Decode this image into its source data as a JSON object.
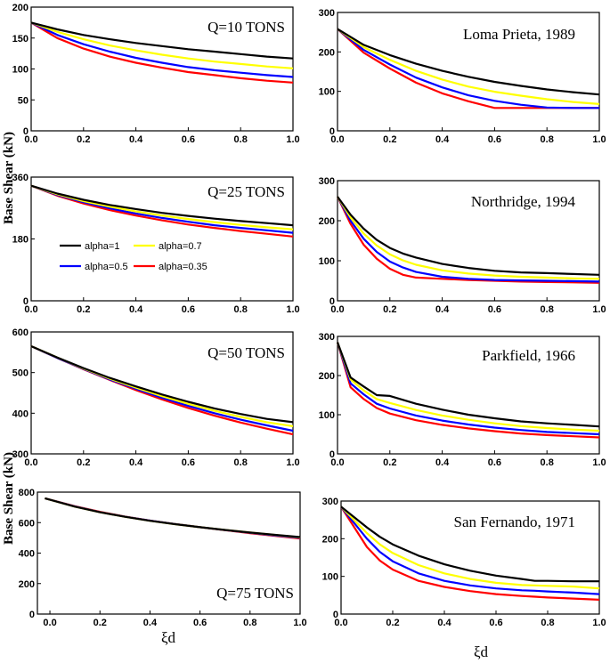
{
  "figure": {
    "ylabel_top": "Base Shear (kN)",
    "ylabel_bottom": "Base Shear (kN)",
    "xlabel_left": "ξd",
    "xlabel_right": "ξd"
  },
  "chart_data": [
    {
      "type": "line",
      "annotation": "Q=10 TONS",
      "xlim": [
        0,
        1
      ],
      "ylim": [
        0,
        200
      ],
      "xticks": [
        "0.0",
        "0.2",
        "0.4",
        "0.6",
        "0.8",
        "1.0"
      ],
      "yticks": [
        "0",
        "50",
        "100",
        "150",
        "200"
      ],
      "x": [
        0,
        0.1,
        0.2,
        0.3,
        0.4,
        0.5,
        0.6,
        0.7,
        0.8,
        0.9,
        1.0
      ],
      "series": [
        {
          "name": "alpha=1",
          "color": "#000000",
          "values": [
            175,
            164,
            155,
            148,
            142,
            137,
            132,
            128,
            124,
            120,
            117
          ]
        },
        {
          "name": "alpha=0.7",
          "color": "#ffff00",
          "values": [
            175,
            160,
            148,
            138,
            130,
            123,
            117,
            112,
            108,
            104,
            101
          ]
        },
        {
          "name": "alpha=0.5",
          "color": "#0000ff",
          "values": [
            175,
            155,
            140,
            128,
            118,
            110,
            103,
            98,
            94,
            90,
            87
          ]
        },
        {
          "name": "alpha=0.35",
          "color": "#ff0000",
          "values": [
            175,
            150,
            133,
            120,
            110,
            102,
            95,
            90,
            85,
            81,
            78
          ]
        }
      ]
    },
    {
      "type": "line",
      "annotation": "Loma Prieta, 1989",
      "xlim": [
        0,
        1
      ],
      "ylim": [
        0,
        300
      ],
      "xticks": [
        "0.0",
        "0.2",
        "0.4",
        "0.6",
        "0.8",
        "1.0"
      ],
      "yticks": [
        "0",
        "100",
        "200",
        "300"
      ],
      "x": [
        0,
        0.1,
        0.2,
        0.3,
        0.4,
        0.5,
        0.6,
        0.7,
        0.8,
        0.9,
        1.0
      ],
      "series": [
        {
          "name": "alpha=1",
          "color": "#000000",
          "values": [
            258,
            218,
            192,
            170,
            152,
            137,
            124,
            114,
            105,
            98,
            92
          ]
        },
        {
          "name": "alpha=0.7",
          "color": "#ffff00",
          "values": [
            258,
            212,
            180,
            152,
            130,
            112,
            99,
            89,
            80,
            73,
            68
          ]
        },
        {
          "name": "alpha=0.5",
          "color": "#0000ff",
          "values": [
            258,
            205,
            168,
            135,
            110,
            90,
            76,
            66,
            59,
            58,
            58
          ]
        },
        {
          "name": "alpha=0.35",
          "color": "#ff0000",
          "values": [
            258,
            198,
            158,
            122,
            95,
            75,
            58,
            58,
            58,
            58,
            58
          ]
        }
      ]
    },
    {
      "type": "line",
      "annotation": "Q=25 TONS",
      "xlim": [
        0,
        1
      ],
      "ylim": [
        0,
        360
      ],
      "xticks": [
        "0.0",
        "0.2",
        "0.4",
        "0.6",
        "0.8",
        "1.0"
      ],
      "yticks": [
        "0",
        "180",
        "360"
      ],
      "x": [
        0,
        0.1,
        0.2,
        0.3,
        0.4,
        0.5,
        0.6,
        0.7,
        0.8,
        0.9,
        1.0
      ],
      "legend": [
        "alpha=1",
        "alpha=0.7",
        "alpha=0.5",
        "alpha=0.35"
      ],
      "series": [
        {
          "name": "alpha=1",
          "color": "#000000",
          "values": [
            335,
            312,
            294,
            279,
            267,
            256,
            247,
            239,
            232,
            226,
            220
          ]
        },
        {
          "name": "alpha=0.7",
          "color": "#ffff00",
          "values": [
            335,
            310,
            290,
            274,
            260,
            248,
            238,
            229,
            221,
            214,
            208
          ]
        },
        {
          "name": "alpha=0.5",
          "color": "#0000ff",
          "values": [
            335,
            308,
            287,
            269,
            254,
            241,
            230,
            220,
            212,
            205,
            198
          ]
        },
        {
          "name": "alpha=0.35",
          "color": "#ff0000",
          "values": [
            335,
            306,
            283,
            264,
            248,
            234,
            222,
            212,
            203,
            195,
            187
          ]
        }
      ]
    },
    {
      "type": "line",
      "annotation": "Northridge, 1994",
      "xlim": [
        0,
        1
      ],
      "ylim": [
        0,
        300
      ],
      "xticks": [
        "0.0",
        "0.2",
        "0.4",
        "0.6",
        "0.8",
        "1.0"
      ],
      "yticks": [
        "0",
        "100",
        "200",
        "300"
      ],
      "x": [
        0,
        0.05,
        0.1,
        0.15,
        0.2,
        0.25,
        0.3,
        0.4,
        0.5,
        0.6,
        0.7,
        0.8,
        0.9,
        1.0
      ],
      "series": [
        {
          "name": "alpha=1",
          "color": "#000000",
          "values": [
            260,
            215,
            180,
            152,
            132,
            118,
            108,
            92,
            82,
            75,
            71,
            69,
            67,
            65
          ]
        },
        {
          "name": "alpha=0.7",
          "color": "#ffff00",
          "values": [
            260,
            208,
            168,
            138,
            116,
            101,
            90,
            76,
            68,
            63,
            60,
            58,
            56,
            55
          ]
        },
        {
          "name": "alpha=0.5",
          "color": "#0000ff",
          "values": [
            260,
            200,
            155,
            122,
            98,
            83,
            72,
            60,
            55,
            52,
            51,
            50,
            49,
            48
          ]
        },
        {
          "name": "alpha=0.35",
          "color": "#ff0000",
          "values": [
            260,
            192,
            140,
            105,
            80,
            65,
            58,
            55,
            52,
            50,
            48,
            47,
            46,
            45
          ]
        }
      ]
    },
    {
      "type": "line",
      "annotation": "Q=50 TONS",
      "xlim": [
        0,
        1
      ],
      "ylim": [
        300,
        600
      ],
      "xticks": [
        "0.0",
        "0.2",
        "0.4",
        "0.6",
        "0.8",
        "1.0"
      ],
      "yticks": [
        "300",
        "400",
        "500",
        "600"
      ],
      "x": [
        0,
        0.1,
        0.2,
        0.3,
        0.4,
        0.5,
        0.6,
        0.7,
        0.8,
        0.9,
        1.0
      ],
      "series": [
        {
          "name": "alpha=1",
          "color": "#000000",
          "values": [
            565,
            537,
            511,
            487,
            466,
            446,
            428,
            412,
            398,
            386,
            378
          ]
        },
        {
          "name": "alpha=0.7",
          "color": "#ffff00",
          "values": [
            565,
            537,
            510,
            485,
            463,
            442,
            423,
            406,
            391,
            378,
            368
          ]
        },
        {
          "name": "alpha=0.5",
          "color": "#0000ff",
          "values": [
            565,
            536,
            509,
            483,
            460,
            438,
            418,
            400,
            384,
            370,
            357
          ]
        },
        {
          "name": "alpha=0.35",
          "color": "#ff0000",
          "values": [
            565,
            536,
            508,
            482,
            457,
            434,
            413,
            394,
            377,
            362,
            348
          ]
        }
      ]
    },
    {
      "type": "line",
      "annotation": "Parkfield, 1966",
      "xlim": [
        0,
        1
      ],
      "ylim": [
        0,
        300
      ],
      "xticks": [
        "0.0",
        "0.2",
        "0.4",
        "0.6",
        "0.8",
        "1.0"
      ],
      "yticks": [
        "0",
        "100",
        "200",
        "300"
      ],
      "x": [
        0,
        0.05,
        0.1,
        0.15,
        0.2,
        0.3,
        0.4,
        0.5,
        0.6,
        0.7,
        0.8,
        0.9,
        1.0
      ],
      "series": [
        {
          "name": "alpha=1",
          "color": "#000000",
          "values": [
            285,
            195,
            172,
            150,
            148,
            128,
            113,
            100,
            91,
            83,
            78,
            74,
            70
          ]
        },
        {
          "name": "alpha=0.7",
          "color": "#ffff00",
          "values": [
            285,
            190,
            162,
            140,
            130,
            112,
            98,
            87,
            78,
            71,
            66,
            62,
            59
          ]
        },
        {
          "name": "alpha=0.5",
          "color": "#0000ff",
          "values": [
            285,
            180,
            152,
            128,
            116,
            98,
            85,
            75,
            67,
            61,
            56,
            53,
            50
          ]
        },
        {
          "name": "alpha=0.35",
          "color": "#ff0000",
          "values": [
            285,
            170,
            140,
            117,
            103,
            86,
            74,
            65,
            58,
            52,
            48,
            45,
            42
          ]
        }
      ]
    },
    {
      "type": "line",
      "annotation": "Q=75 TONS",
      "xlim": [
        -0.05,
        1
      ],
      "ylim": [
        0,
        800
      ],
      "xticks": [
        "0.0",
        "0.2",
        "0.4",
        "0.6",
        "0.8",
        "1.0"
      ],
      "yticks": [
        "0",
        "200",
        "400",
        "600",
        "800"
      ],
      "x": [
        -0.02,
        0.1,
        0.2,
        0.3,
        0.4,
        0.5,
        0.6,
        0.7,
        0.8,
        0.9,
        1.0
      ],
      "series": [
        {
          "name": "alpha=1",
          "color": "#000000",
          "values": [
            760,
            705,
            668,
            638,
            612,
            590,
            570,
            552,
            535,
            520,
            505
          ]
        },
        {
          "name": "alpha=0.7",
          "color": "#ffff00",
          "values": [
            760,
            705,
            668,
            638,
            612,
            590,
            570,
            552,
            535,
            519,
            503
          ]
        },
        {
          "name": "alpha=0.5",
          "color": "#0000ff",
          "values": [
            760,
            706,
            669,
            639,
            613,
            591,
            570,
            551,
            533,
            516,
            500
          ]
        },
        {
          "name": "alpha=0.35",
          "color": "#ff0000",
          "values": [
            760,
            708,
            671,
            640,
            614,
            591,
            570,
            550,
            531,
            513,
            496
          ]
        }
      ]
    },
    {
      "type": "line",
      "annotation": "San Fernando, 1971",
      "xlim": [
        0,
        1
      ],
      "ylim": [
        0,
        300
      ],
      "xticks": [
        "0.0",
        "0.2",
        "0.4",
        "0.6",
        "0.8",
        "1.0"
      ],
      "yticks": [
        "0",
        "100",
        "200",
        "300"
      ],
      "x": [
        0,
        0.1,
        0.15,
        0.2,
        0.3,
        0.4,
        0.5,
        0.6,
        0.7,
        0.75,
        0.8,
        0.9,
        1.0
      ],
      "series": [
        {
          "name": "alpha=1",
          "color": "#000000",
          "values": [
            285,
            230,
            205,
            185,
            155,
            132,
            115,
            102,
            93,
            88,
            88,
            87,
            87
          ]
        },
        {
          "name": "alpha=0.7",
          "color": "#ffff00",
          "values": [
            285,
            215,
            185,
            162,
            130,
            108,
            93,
            83,
            77,
            76,
            75,
            73,
            68
          ]
        },
        {
          "name": "alpha=0.5",
          "color": "#0000ff",
          "values": [
            285,
            200,
            165,
            140,
            108,
            88,
            76,
            68,
            63,
            62,
            60,
            57,
            53
          ]
        },
        {
          "name": "alpha=0.35",
          "color": "#ff0000",
          "values": [
            285,
            178,
            142,
            118,
            88,
            72,
            61,
            53,
            48,
            46,
            44,
            41,
            38
          ]
        }
      ]
    }
  ]
}
